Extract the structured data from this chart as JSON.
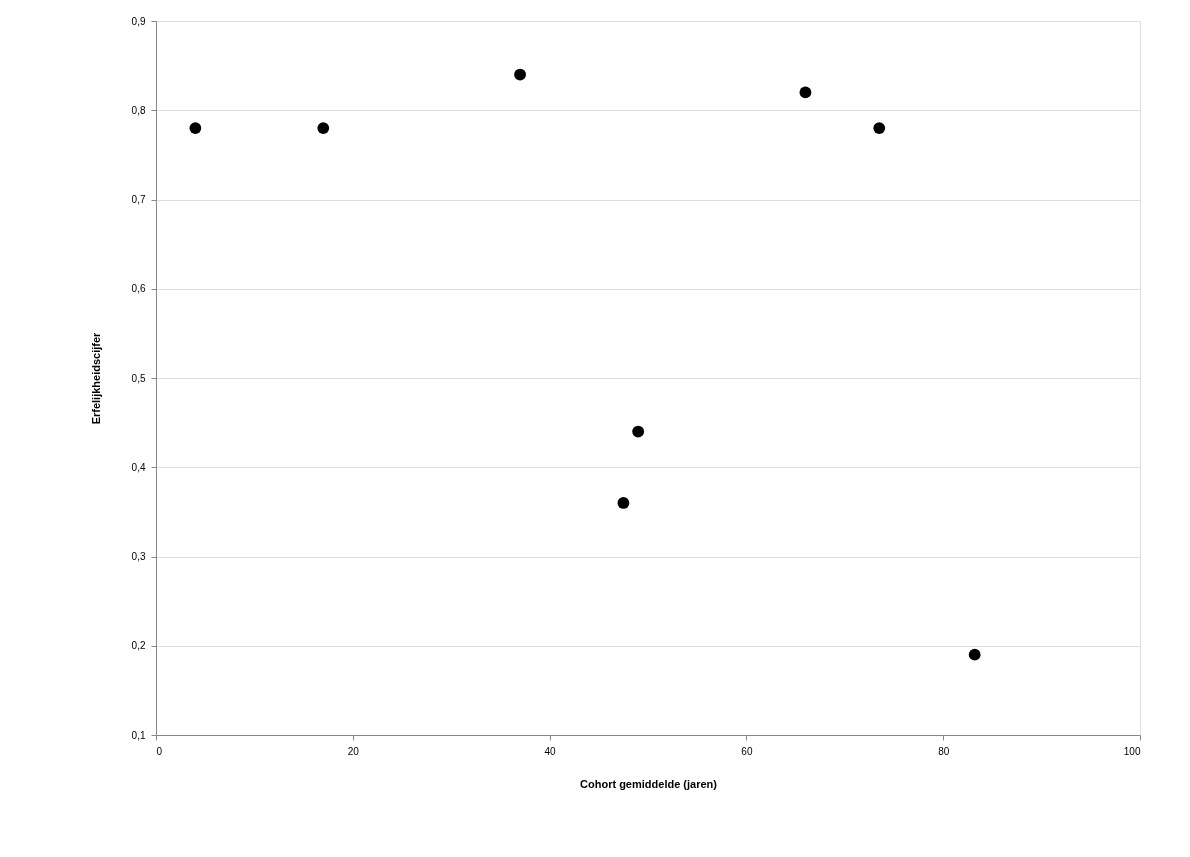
{
  "chart_data": {
    "type": "scatter",
    "xlabel": "Cohort gemiddelde (jaren)",
    "ylabel": "Erfelijkheidscijfer",
    "x": [
      4,
      17,
      37,
      49,
      47.5,
      66,
      73.5,
      83.2
    ],
    "values": [
      0.78,
      0.78,
      0.84,
      0.44,
      0.36,
      0.82,
      0.78,
      0.19
    ],
    "color": "#000000",
    "marker": "circle",
    "grid": "y",
    "xlim": [
      0,
      100
    ],
    "xticks": [
      0,
      20,
      40,
      60,
      80,
      100
    ],
    "ylim": [
      0.1,
      0.9
    ],
    "yticks": [
      {
        "value": 0.1,
        "label": "0,1"
      },
      {
        "value": 0.2,
        "label": "0,2"
      },
      {
        "value": 0.3,
        "label": "0,3"
      },
      {
        "value": 0.4,
        "label": "0,4"
      },
      {
        "value": 0.5,
        "label": "0,5"
      },
      {
        "value": 0.6,
        "label": "0,6"
      },
      {
        "value": 0.7,
        "label": "0,7"
      },
      {
        "value": 0.8,
        "label": "0,8"
      },
      {
        "value": 0.9,
        "label": "0,9"
      }
    ]
  }
}
